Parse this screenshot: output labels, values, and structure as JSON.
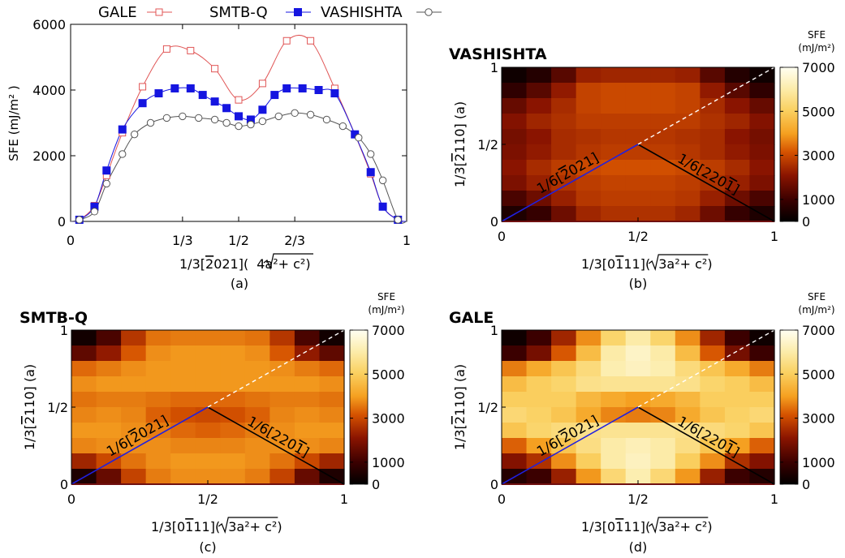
{
  "chart_data": [
    {
      "panel": "(a)",
      "type": "line",
      "ylabel": "SFE (mJ/m² )",
      "xlabel_prefix": "1/3[",
      "xlabel_bar": "2",
      "xlabel_mid": "021](",
      "xlabel_root": "4a²+ c²",
      "xlabel_suffix": ")",
      "sublabel": "(a)",
      "xlim": [
        0,
        1
      ],
      "ylim": [
        0,
        6000
      ],
      "xticks": [
        {
          "v": 0,
          "label": "0"
        },
        {
          "v": 0.333,
          "label": "1/3"
        },
        {
          "v": 0.5,
          "label": "1/2"
        },
        {
          "v": 0.667,
          "label": "2/3"
        },
        {
          "v": 1,
          "label": "1"
        }
      ],
      "yticks": [
        0,
        2000,
        4000,
        6000
      ],
      "series": [
        {
          "name": "GALE",
          "color": "#e05555",
          "marker": "open-square",
          "x": [
            0.026,
            0.071,
            0.107,
            0.154,
            0.214,
            0.286,
            0.357,
            0.429,
            0.5,
            0.571,
            0.643,
            0.714,
            0.786,
            0.846,
            0.893,
            0.929,
            0.974
          ],
          "y": [
            50,
            480,
            1400,
            2700,
            4100,
            5250,
            5200,
            4650,
            3700,
            4200,
            5500,
            5500,
            4050,
            2650,
            1450,
            450,
            50
          ]
        },
        {
          "name": "SMTB-Q",
          "color": "#1515e0",
          "marker": "filled-square",
          "x": [
            0.026,
            0.071,
            0.107,
            0.154,
            0.214,
            0.262,
            0.31,
            0.357,
            0.393,
            0.429,
            0.464,
            0.5,
            0.536,
            0.571,
            0.607,
            0.643,
            0.69,
            0.738,
            0.786,
            0.846,
            0.893,
            0.929,
            0.974
          ],
          "y": [
            50,
            450,
            1550,
            2800,
            3600,
            3900,
            4050,
            4050,
            3850,
            3650,
            3450,
            3200,
            3100,
            3400,
            3850,
            4050,
            4050,
            4000,
            3900,
            2650,
            1500,
            450,
            50
          ]
        },
        {
          "name": "VASHISHTA",
          "color": "#555555",
          "marker": "open-circle",
          "x": [
            0.026,
            0.071,
            0.107,
            0.154,
            0.19,
            0.238,
            0.286,
            0.333,
            0.381,
            0.429,
            0.464,
            0.5,
            0.536,
            0.571,
            0.619,
            0.667,
            0.714,
            0.762,
            0.81,
            0.857,
            0.893,
            0.929,
            0.974
          ],
          "y": [
            50,
            300,
            1150,
            2050,
            2650,
            3000,
            3150,
            3200,
            3150,
            3100,
            3000,
            2900,
            2950,
            3050,
            3200,
            3300,
            3250,
            3100,
            2900,
            2550,
            2050,
            1250,
            50
          ]
        }
      ]
    },
    {
      "panel": "(b)",
      "type": "heatmap",
      "title": "VASHISHTA",
      "sublabel": "(b)",
      "grid": [
        [
          250,
          600,
          1400,
          2300,
          2400,
          2400,
          2400,
          2300,
          1400,
          600,
          250
        ],
        [
          800,
          1400,
          2200,
          2900,
          3000,
          3000,
          3000,
          2900,
          2200,
          1400,
          800
        ],
        [
          1600,
          2100,
          2500,
          2900,
          3000,
          3000,
          3000,
          2900,
          2500,
          2100,
          1600
        ],
        [
          2000,
          2400,
          2600,
          2800,
          2800,
          2800,
          2800,
          2800,
          2600,
          2400,
          2000
        ],
        [
          1800,
          2100,
          2500,
          2600,
          2700,
          2700,
          2700,
          2600,
          2500,
          2100,
          1800
        ],
        [
          1900,
          2200,
          2500,
          2700,
          2800,
          2800,
          2800,
          2700,
          2500,
          2200,
          1900
        ],
        [
          2100,
          2500,
          2800,
          3000,
          3100,
          3100,
          3100,
          3000,
          2800,
          2500,
          2100
        ],
        [
          1900,
          2300,
          2600,
          2800,
          2900,
          2900,
          2900,
          2800,
          2600,
          2300,
          1900
        ],
        [
          1200,
          1700,
          2300,
          2700,
          2800,
          2800,
          2800,
          2700,
          2300,
          1700,
          1200
        ],
        [
          500,
          900,
          1700,
          2400,
          2600,
          2600,
          2600,
          2400,
          1700,
          900,
          500
        ]
      ]
    },
    {
      "panel": "(c)",
      "type": "heatmap",
      "title": "SMTB-Q",
      "sublabel": "(c)",
      "grid": [
        [
          300,
          1200,
          2700,
          3500,
          3600,
          3600,
          3600,
          3500,
          2700,
          1200,
          300
        ],
        [
          1500,
          2200,
          3200,
          3800,
          3900,
          3900,
          3900,
          3800,
          3200,
          2200,
          1500
        ],
        [
          3400,
          3600,
          3800,
          3900,
          3900,
          3900,
          3900,
          3900,
          3800,
          3600,
          3400
        ],
        [
          3800,
          3900,
          3900,
          3900,
          3900,
          3900,
          3900,
          3900,
          3900,
          3900,
          3800
        ],
        [
          3500,
          3600,
          3600,
          3500,
          3400,
          3400,
          3400,
          3500,
          3600,
          3600,
          3500
        ],
        [
          3700,
          3800,
          3700,
          3300,
          3100,
          3000,
          3100,
          3300,
          3700,
          3800,
          3700
        ],
        [
          3900,
          3900,
          3800,
          3600,
          3400,
          3300,
          3400,
          3600,
          3800,
          3900,
          3900
        ],
        [
          3700,
          3800,
          3800,
          3800,
          3700,
          3700,
          3700,
          3800,
          3800,
          3800,
          3700
        ],
        [
          2400,
          3000,
          3500,
          3800,
          3900,
          3900,
          3900,
          3800,
          3500,
          3000,
          2400
        ],
        [
          500,
          1600,
          2900,
          3600,
          3800,
          3800,
          3800,
          3600,
          2900,
          1600,
          500
        ]
      ]
    },
    {
      "panel": "(d)",
      "type": "heatmap",
      "title": "GALE",
      "sublabel": "(d)",
      "grid": [
        [
          250,
          1000,
          2400,
          3800,
          5200,
          6000,
          5200,
          3800,
          2400,
          1000,
          250
        ],
        [
          1000,
          1800,
          3200,
          4600,
          6000,
          6400,
          6000,
          4600,
          3200,
          1800,
          1000
        ],
        [
          3600,
          4200,
          4800,
          5400,
          6100,
          6300,
          6100,
          5400,
          4800,
          4200,
          3600
        ],
        [
          4600,
          5000,
          5200,
          5600,
          5700,
          5700,
          5700,
          5600,
          5200,
          5000,
          4600
        ],
        [
          5000,
          5000,
          5000,
          4500,
          4200,
          4000,
          4200,
          4500,
          5000,
          5000,
          5000
        ],
        [
          5300,
          5100,
          4800,
          4200,
          3700,
          3600,
          3700,
          4200,
          4800,
          5100,
          5300
        ],
        [
          4800,
          5200,
          5400,
          5600,
          5700,
          5700,
          5700,
          5600,
          5400,
          5200,
          4800
        ],
        [
          3300,
          4000,
          4800,
          5500,
          6000,
          6200,
          6000,
          5500,
          4800,
          4000,
          3300
        ],
        [
          2000,
          2600,
          3800,
          5000,
          6000,
          6300,
          6000,
          5000,
          3800,
          2600,
          2000
        ],
        [
          600,
          1000,
          2300,
          3900,
          5300,
          6100,
          5300,
          3900,
          2300,
          1000,
          600
        ]
      ]
    }
  ],
  "heatmap_common": {
    "xlabel_prefix": "1/3[0",
    "xlabel_bar": "1",
    "xlabel_mid": "11](",
    "xlabel_root": "3a²+ c²",
    "xlabel_suffix": ")",
    "ylabel_prefix": "1/3[",
    "ylabel_bar": "2",
    "ylabel_suffix": "110] (a)",
    "xticks": [
      {
        "v": 0,
        "label": "0"
      },
      {
        "v": 0.5,
        "label": "1/2"
      },
      {
        "v": 1,
        "label": "1"
      }
    ],
    "yticks": [
      {
        "v": 0,
        "label": "0"
      },
      {
        "v": 0.5,
        "label": "1/2"
      },
      {
        "v": 1,
        "label": "1"
      }
    ],
    "blue_line_label": "1/6[2021]",
    "blue_line_bar_index": 4,
    "black_line_label": "1/6[2201]",
    "black_line_bar_index": 7,
    "colorbar_title_1": "SFE",
    "colorbar_title_2": "(mJ/m²)",
    "colorbar_ticks": [
      0,
      1000,
      3000,
      5000,
      7000
    ],
    "colorbar_range": [
      0,
      7000
    ]
  }
}
